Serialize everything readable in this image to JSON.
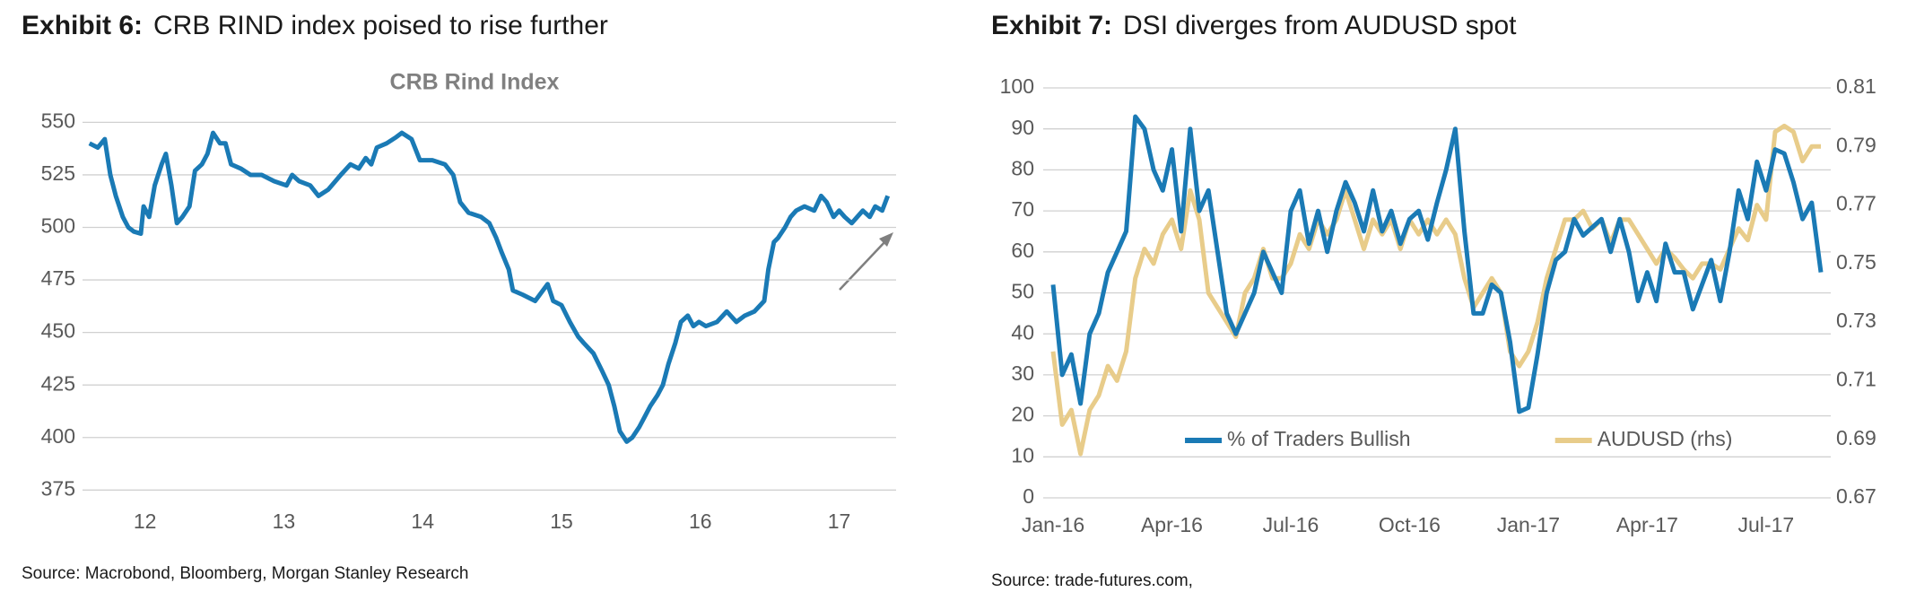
{
  "chart_data": [
    {
      "type": "line",
      "exhibit": "Exhibit 6:",
      "title": "CRB RIND index poised to rise further",
      "subtitle": "CRB Rind Index",
      "source": "Source: Macrobond, Bloomberg, Morgan Stanley Research",
      "x": [
        2011.6,
        2011.66,
        2011.71,
        2011.75,
        2011.79,
        2011.84,
        2011.88,
        2011.92,
        2011.97,
        2011.99,
        2012.03,
        2012.07,
        2012.12,
        2012.15,
        2012.19,
        2012.23,
        2012.27,
        2012.32,
        2012.36,
        2012.41,
        2012.45,
        2012.49,
        2012.54,
        2012.58,
        2012.62,
        2012.69,
        2012.76,
        2012.84,
        2012.93,
        2013.02,
        2013.06,
        2013.11,
        2013.19,
        2013.25,
        2013.32,
        2013.41,
        2013.48,
        2013.54,
        2013.59,
        2013.63,
        2013.67,
        2013.74,
        2013.81,
        2013.85,
        2013.92,
        2013.98,
        2014.07,
        2014.16,
        2014.22,
        2014.27,
        2014.33,
        2014.42,
        2014.48,
        2014.53,
        2014.57,
        2014.62,
        2014.65,
        2014.72,
        2014.81,
        2014.9,
        2014.94,
        2015.0,
        2015.06,
        2015.12,
        2015.16,
        2015.23,
        2015.29,
        2015.34,
        2015.38,
        2015.42,
        2015.47,
        2015.51,
        2015.56,
        2015.6,
        2015.64,
        2015.69,
        2015.73,
        2015.77,
        2015.82,
        2015.86,
        2015.91,
        2015.95,
        2015.99,
        2016.04,
        2016.12,
        2016.19,
        2016.26,
        2016.32,
        2016.39,
        2016.46,
        2016.49,
        2016.53,
        2016.56,
        2016.61,
        2016.65,
        2016.69,
        2016.75,
        2016.82,
        2016.87,
        2016.91,
        2016.96,
        2017.0,
        2017.04,
        2017.09,
        2017.13,
        2017.17,
        2017.22,
        2017.26,
        2017.31,
        2017.35
      ],
      "values": [
        540,
        538,
        542,
        525,
        515,
        505,
        500,
        498,
        497,
        510,
        505,
        520,
        530,
        535,
        520,
        502,
        505,
        510,
        527,
        530,
        535,
        545,
        540,
        540,
        530,
        528,
        525,
        525,
        522,
        520,
        525,
        522,
        520,
        515,
        518,
        525,
        530,
        528,
        533,
        530,
        538,
        540,
        543,
        545,
        542,
        532,
        532,
        530,
        525,
        512,
        507,
        505,
        502,
        495,
        488,
        480,
        470,
        468,
        465,
        473,
        465,
        463,
        455,
        448,
        445,
        440,
        432,
        425,
        415,
        403,
        398,
        400,
        405,
        410,
        415,
        420,
        425,
        435,
        445,
        455,
        458,
        453,
        455,
        453,
        455,
        460,
        455,
        458,
        460,
        465,
        480,
        493,
        495,
        500,
        505,
        508,
        510,
        508,
        515,
        512,
        505,
        508,
        505,
        502,
        505,
        508,
        505,
        510,
        508,
        515
      ],
      "color": "#1a7ab5",
      "xlim": [
        2011.55,
        2017.41
      ],
      "xticks": [
        {
          "value": 2012,
          "label": "12"
        },
        {
          "value": 2013,
          "label": "13"
        },
        {
          "value": 2014,
          "label": "14"
        },
        {
          "value": 2015,
          "label": "15"
        },
        {
          "value": 2016,
          "label": "16"
        },
        {
          "value": 2017,
          "label": "17"
        }
      ],
      "ylim": [
        370,
        557
      ],
      "yticks": [
        375,
        400,
        425,
        450,
        475,
        500,
        525,
        550
      ],
      "grid": true
    },
    {
      "type": "line",
      "exhibit": "Exhibit 7:",
      "title": "DSI diverges from AUDUSD spot",
      "source": "Source: trade-futures.com,",
      "categories": [
        "Jan-16",
        null,
        null,
        null,
        null,
        null,
        null,
        null,
        null,
        null,
        null,
        null,
        null,
        "Apr-16",
        null,
        null,
        null,
        null,
        null,
        null,
        null,
        null,
        null,
        null,
        null,
        null,
        "Jul-16",
        null,
        null,
        null,
        null,
        null,
        null,
        null,
        null,
        null,
        null,
        null,
        null,
        "Oct-16",
        null,
        null,
        null,
        null,
        null,
        null,
        null,
        null,
        null,
        null,
        null,
        null,
        "Jan-17",
        null,
        null,
        null,
        null,
        null,
        null,
        null,
        null,
        null,
        null,
        null,
        null,
        "Apr-17",
        null,
        null,
        null,
        null,
        null,
        null,
        null,
        null,
        null,
        null,
        null,
        null,
        "Jul-17",
        null,
        null,
        null,
        null,
        null,
        null
      ],
      "series": [
        {
          "name": "% of Traders Bullish",
          "color": "#1a7ab5",
          "values": [
            52,
            30,
            35,
            23,
            40,
            45,
            55,
            60,
            65,
            93,
            90,
            80,
            75,
            85,
            65,
            90,
            70,
            75,
            60,
            45,
            40,
            45,
            50,
            60,
            55,
            50,
            70,
            75,
            62,
            70,
            60,
            70,
            77,
            72,
            65,
            75,
            65,
            70,
            62,
            68,
            70,
            63,
            72,
            80,
            90,
            65,
            45,
            45,
            52,
            50,
            38,
            21,
            22,
            35,
            50,
            58,
            60,
            68,
            64,
            66,
            68,
            60,
            68,
            60,
            48,
            55,
            48,
            62,
            55,
            55,
            46,
            52,
            58,
            48,
            60,
            75,
            68,
            82,
            75,
            85,
            84,
            77,
            68,
            72,
            55
          ]
        },
        {
          "name": "AUDUSD (rhs)",
          "color": "#e8cc8a",
          "axis": "y2",
          "values": [
            0.72,
            0.695,
            0.7,
            0.685,
            0.7,
            0.705,
            0.715,
            0.71,
            0.72,
            0.745,
            0.755,
            0.75,
            0.76,
            0.765,
            0.755,
            0.775,
            0.765,
            0.74,
            0.735,
            0.73,
            0.725,
            0.74,
            0.745,
            0.755,
            0.745,
            0.745,
            0.75,
            0.76,
            0.755,
            0.765,
            0.76,
            0.765,
            0.775,
            0.765,
            0.755,
            0.765,
            0.76,
            0.765,
            0.755,
            0.765,
            0.76,
            0.765,
            0.76,
            0.765,
            0.76,
            0.745,
            0.735,
            0.74,
            0.745,
            0.74,
            0.72,
            0.715,
            0.72,
            0.73,
            0.745,
            0.755,
            0.765,
            0.765,
            0.768,
            0.762,
            0.765,
            0.757,
            0.765,
            0.765,
            0.76,
            0.755,
            0.75,
            0.755,
            0.752,
            0.748,
            0.745,
            0.75,
            0.75,
            0.748,
            0.755,
            0.762,
            0.758,
            0.77,
            0.765,
            0.795,
            0.797,
            0.795,
            0.785,
            0.79,
            0.79
          ]
        }
      ],
      "ylim": [
        0,
        100
      ],
      "yticks": [
        0,
        10,
        20,
        30,
        40,
        50,
        60,
        70,
        80,
        90,
        100
      ],
      "y2lim": [
        0.67,
        0.81
      ],
      "y2ticks": [
        0.67,
        0.69,
        0.71,
        0.73,
        0.75,
        0.77,
        0.79,
        0.81
      ],
      "grid": true,
      "legend": "bottom"
    }
  ]
}
